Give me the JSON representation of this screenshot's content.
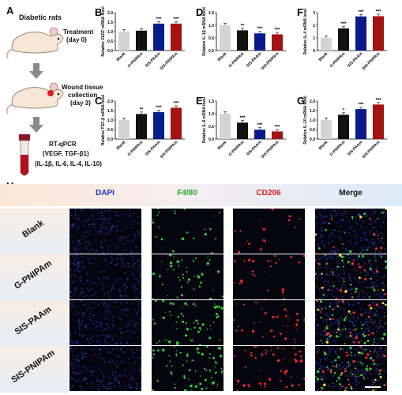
{
  "panel_a": {
    "letter": "A",
    "title": "Diabetic rats",
    "step1_line1": "Treatment",
    "step1_line2": "(day 0)",
    "step2_line1": "Wound tissue",
    "step2_line2": "collection",
    "step2_line3": "(day 3)",
    "step3_line1": "RT-qPCR",
    "step3_line2": "(VEGF, TGF-β1)",
    "step3_line3": "(IL-1β, IL-6, IL-4, IL-10)"
  },
  "chart_data": [
    {
      "panel": "B",
      "type": "bar",
      "ylabel": "Relative VEGF mRNA level",
      "ylim": [
        0,
        2.0
      ],
      "yticks": [
        "0.0",
        "0.5",
        "1.0",
        "1.5",
        "2.0"
      ],
      "categories": [
        "Blank",
        "G-PNIPAm",
        "SIS-PAAm",
        "SIS-PNIPAm"
      ],
      "values": [
        1.0,
        1.05,
        1.42,
        1.42
      ],
      "significance": [
        "",
        "",
        "***",
        "***"
      ]
    },
    {
      "panel": "C",
      "type": "bar",
      "ylabel": "Relative TGF-β mRNA level",
      "ylim": [
        0,
        2.0
      ],
      "yticks": [
        "0.0",
        "0.5",
        "1.0",
        "1.5",
        "2.0"
      ],
      "categories": [
        "Blank",
        "G-PNIPAm",
        "SIS-PAAm",
        "SIS-PNIPAm"
      ],
      "values": [
        1.0,
        1.32,
        1.42,
        1.65
      ],
      "significance": [
        "",
        "**",
        "***",
        "***"
      ]
    },
    {
      "panel": "D",
      "type": "bar",
      "ylabel": "Relative IL-1β mRNA level",
      "ylim": [
        0,
        1.5
      ],
      "yticks": [
        "0.0",
        "0.5",
        "1.0",
        "1.5"
      ],
      "categories": [
        "Blank",
        "G-PNIPAm",
        "SIS-PAAm",
        "SIS-PNIPAm"
      ],
      "values": [
        1.0,
        0.8,
        0.68,
        0.64
      ],
      "significance": [
        "",
        "**",
        "***",
        "***"
      ]
    },
    {
      "panel": "E",
      "type": "bar",
      "ylabel": "Relative IL-6 mRNA level",
      "ylim": [
        0,
        1.5
      ],
      "yticks": [
        "0.0",
        "0.5",
        "1.0",
        "1.5"
      ],
      "categories": [
        "Blank",
        "G-PNIPAm",
        "SIS-PAAm",
        "SIS-PNIPAm"
      ],
      "values": [
        1.0,
        0.65,
        0.37,
        0.3
      ],
      "significance": [
        "",
        "***",
        "***",
        "***"
      ]
    },
    {
      "panel": "F",
      "type": "bar",
      "ylabel": "Relative IL-4 mRNA level",
      "ylim": [
        0,
        3
      ],
      "yticks": [
        "0",
        "1",
        "2",
        "3"
      ],
      "categories": [
        "Blank",
        "G-PNIPAm",
        "SIS-PAAm",
        "SIS-PNIPAm"
      ],
      "values": [
        1.0,
        1.75,
        2.7,
        2.72
      ],
      "significance": [
        "",
        "***",
        "***",
        "***"
      ]
    },
    {
      "panel": "G",
      "type": "bar",
      "ylabel": "Relative IL-10 mRNA level",
      "ylim": [
        0,
        2.0
      ],
      "yticks": [
        "0.0",
        "0.5",
        "1.0",
        "1.5",
        "2.0"
      ],
      "categories": [
        "Blank",
        "G-PNIPAm",
        "SIS-PAAm",
        "SIS-PNIPAm"
      ],
      "values": [
        1.0,
        1.28,
        1.58,
        1.82
      ],
      "significance": [
        "",
        "*",
        "***",
        "***"
      ]
    }
  ],
  "colors": {
    "blank": "#d4d4d4",
    "g_pnipam": "#111111",
    "sis_paam": "#0a1a8a",
    "sis_pnipam": "#a51212",
    "dapi": "#1b33d6",
    "f480": "#22aa22",
    "cd206": "#d62020",
    "merge": "#111111"
  },
  "panel_h": {
    "letter": "H",
    "columns": [
      "DAPI",
      "F4/80",
      "CD206",
      "Merge"
    ],
    "rows": [
      "Blank",
      "G-PNIPAm",
      "SIS-PAAm",
      "SIS-PNIPAm"
    ]
  }
}
